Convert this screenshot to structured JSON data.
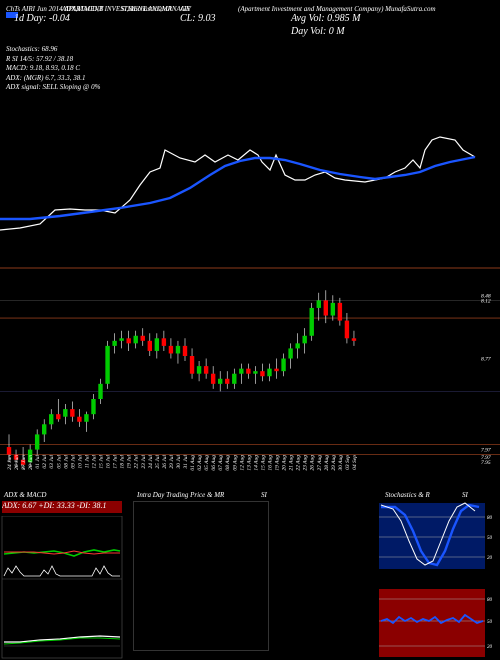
{
  "header": {
    "left_line": "ChTs AIRI Jun 2014 APARTMENT INVESTMENT ANDMANAGE",
    "tickers": [
      "(AIV)",
      "AIV"
    ],
    "indicators": "ADX,MACD,B",
    "stochastics_label": "SI,Stochastics,MR",
    "ticker_code": "AIV",
    "company": "(Apartment Investment and Management Company) MunafaSutra.com",
    "close_label": "CL: 9.03",
    "day_change": "1d Day: -0.04",
    "avg_vol": "Avg Vol: 0.985 M",
    "day_vol": "Day Vol: 0   M"
  },
  "info": {
    "stochastics": "Stochastics: 68.96",
    "rsi": "R               SI 14/5: 57.92 / 38.18",
    "macd": "MACD: 9.18, 8.93, 0.18  C",
    "adx": "ADX:                      (MGR) 6.7, 33.3, 38.1",
    "adx_signal": "ADX  signal: SELL  Sloping @ 0%"
  },
  "price_levels": [
    "8.48",
    "8.12",
    "8.77",
    "7.97",
    "7.97",
    "7.95"
  ],
  "dates": [
    "24 Jun",
    "26 Jun",
    "27 Jun",
    "28 Jun",
    "01 Jul",
    "02 Jul",
    "03 Jul",
    "05 Jul",
    "08 Jul",
    "09 Jul",
    "10 Jul",
    "11 Jul",
    "12 Jul",
    "15 Jul",
    "16 Jul",
    "17 Jul",
    "18 Jul",
    "19 Jul",
    "22 Jul",
    "23 Jul",
    "24 Jul",
    "25 Jul",
    "26 Jul",
    "29 Jul",
    "30 Jul",
    "31 Jul",
    "01 Aug",
    "02 Aug",
    "05 Aug",
    "06 Aug",
    "07 Aug",
    "08 Aug",
    "09 Aug",
    "12 Aug",
    "13 Aug",
    "14 Aug",
    "15 Aug",
    "16 Aug",
    "19 Aug",
    "20 Aug",
    "21 Aug",
    "22 Aug",
    "23 Aug",
    "26 Aug",
    "27 Aug",
    "28 Aug",
    "29 Aug",
    "30 Aug",
    "03 Sep",
    "04 Sep"
  ],
  "panels": {
    "adx_title": "ADX  & MACD",
    "adx_values": "ADX: 6.67  +DI: 33.33 -DI: 38.1",
    "intraday_title": "Intra  Day Trading Price  & MR",
    "intraday_si": "SI",
    "stoch_title": "Stochastics & R",
    "stoch_si": "SI",
    "stoch_levels": [
      "80",
      "50",
      "20"
    ],
    "rsi_levels": [
      "80",
      "50",
      "20"
    ]
  },
  "colors": {
    "up": "#00cc00",
    "down": "#ff0000",
    "ma": "#1a55ff",
    "band": "#8b0000"
  },
  "chart_data": {
    "type": "candlestick",
    "ohlc": [
      [
        7.85,
        7.9,
        7.79,
        7.82
      ],
      [
        7.82,
        7.84,
        7.77,
        7.8
      ],
      [
        7.8,
        7.85,
        7.76,
        7.78
      ],
      [
        7.79,
        7.86,
        7.77,
        7.84
      ],
      [
        7.84,
        7.92,
        7.82,
        7.9
      ],
      [
        7.9,
        7.96,
        7.87,
        7.94
      ],
      [
        7.94,
        8.0,
        7.92,
        7.98
      ],
      [
        7.98,
        8.04,
        7.95,
        7.96
      ],
      [
        7.97,
        8.02,
        7.94,
        8.0
      ],
      [
        8.0,
        8.03,
        7.95,
        7.97
      ],
      [
        7.97,
        8.0,
        7.93,
        7.95
      ],
      [
        7.95,
        7.99,
        7.91,
        7.98
      ],
      [
        7.98,
        8.06,
        7.96,
        8.04
      ],
      [
        8.04,
        8.12,
        8.02,
        8.1
      ],
      [
        8.1,
        8.27,
        8.08,
        8.25
      ],
      [
        8.25,
        8.3,
        8.22,
        8.27
      ],
      [
        8.27,
        8.31,
        8.24,
        8.28
      ],
      [
        8.28,
        8.31,
        8.23,
        8.26
      ],
      [
        8.26,
        8.31,
        8.24,
        8.29
      ],
      [
        8.29,
        8.32,
        8.25,
        8.27
      ],
      [
        8.27,
        8.3,
        8.21,
        8.23
      ],
      [
        8.23,
        8.3,
        8.2,
        8.28
      ],
      [
        8.28,
        8.31,
        8.23,
        8.25
      ],
      [
        8.25,
        8.28,
        8.2,
        8.22
      ],
      [
        8.22,
        8.27,
        8.18,
        8.25
      ],
      [
        8.25,
        8.28,
        8.19,
        8.21
      ],
      [
        8.21,
        8.24,
        8.12,
        8.14
      ],
      [
        8.14,
        8.19,
        8.11,
        8.17
      ],
      [
        8.17,
        8.2,
        8.12,
        8.14
      ],
      [
        8.14,
        8.17,
        8.08,
        8.1
      ],
      [
        8.1,
        8.15,
        8.07,
        8.12
      ],
      [
        8.12,
        8.15,
        8.08,
        8.1
      ],
      [
        8.1,
        8.16,
        8.08,
        8.14
      ],
      [
        8.14,
        8.18,
        8.1,
        8.16
      ],
      [
        8.16,
        8.18,
        8.12,
        8.14
      ],
      [
        8.14,
        8.17,
        8.1,
        8.15
      ],
      [
        8.15,
        8.18,
        8.11,
        8.13
      ],
      [
        8.13,
        8.18,
        8.11,
        8.16
      ],
      [
        8.16,
        8.2,
        8.12,
        8.15
      ],
      [
        8.15,
        8.22,
        8.13,
        8.2
      ],
      [
        8.2,
        8.26,
        8.16,
        8.24
      ],
      [
        8.24,
        8.3,
        8.2,
        8.26
      ],
      [
        8.26,
        8.32,
        8.22,
        8.29
      ],
      [
        8.29,
        8.42,
        8.27,
        8.4
      ],
      [
        8.4,
        8.46,
        8.35,
        8.43
      ],
      [
        8.43,
        8.47,
        8.34,
        8.37
      ],
      [
        8.37,
        8.45,
        8.35,
        8.42
      ],
      [
        8.42,
        8.44,
        8.33,
        8.35
      ],
      [
        8.35,
        8.38,
        8.26,
        8.28
      ],
      [
        8.28,
        8.31,
        8.25,
        8.27
      ]
    ]
  }
}
